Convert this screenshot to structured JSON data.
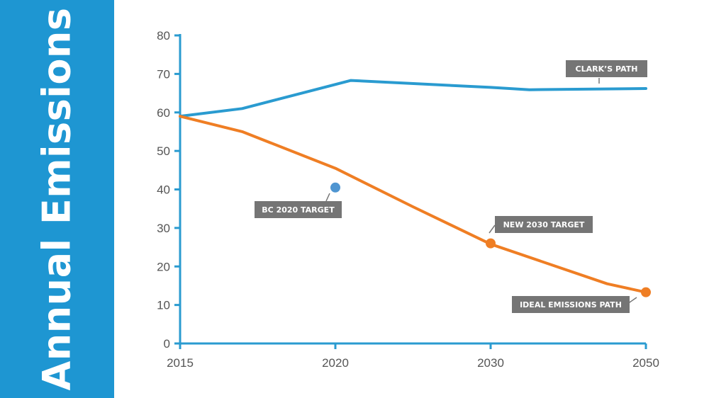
{
  "side_title": "Annual Emissions",
  "colors": {
    "banner": "#1e96d2",
    "clark": "#2a9bd0",
    "ideal": "#ef7e24",
    "bc_target": "#4f95d1",
    "axis": "#2a9bd0",
    "callout_bg": "#757575"
  },
  "chart_data": {
    "type": "line",
    "title": "",
    "xlabel": "",
    "ylabel": "Annual Emissions",
    "x_ticks": [
      "2015",
      "2020",
      "2030",
      "2050"
    ],
    "y_ticks": [
      0,
      10,
      20,
      30,
      40,
      50,
      60,
      70,
      80
    ],
    "ylim": [
      0,
      80
    ],
    "grid": false,
    "series": [
      {
        "name": "CLARK'S PATH",
        "color": "#2a9bd0",
        "points": [
          [
            2015,
            59
          ],
          [
            2017,
            61
          ],
          [
            2021,
            68.3
          ],
          [
            2030,
            66.5
          ],
          [
            2035,
            65.9
          ],
          [
            2050,
            66.2
          ]
        ]
      },
      {
        "name": "IDEAL EMISSIONS PATH",
        "color": "#ef7e24",
        "points": [
          [
            2015,
            59
          ],
          [
            2017,
            55
          ],
          [
            2020,
            45.5
          ],
          [
            2025,
            35.5
          ],
          [
            2030,
            25.8
          ],
          [
            2045,
            15.5
          ],
          [
            2050,
            13.3
          ]
        ]
      }
    ],
    "markers": [
      {
        "label": "BC 2020 TARGET",
        "x": 2020,
        "y": 40.5,
        "color": "#4f95d1"
      },
      {
        "label": "NEW 2030 TARGET",
        "x": 2030,
        "y": 26,
        "color": "#ef7e24"
      },
      {
        "label": "IDEAL EMISSIONS PATH",
        "x": 2050,
        "y": 13.3,
        "color": "#ef7e24"
      }
    ],
    "callouts": {
      "clark": "CLARK’S PATH",
      "bc2020": "BC 2020 TARGET",
      "new2030": "NEW 2030 TARGET",
      "ideal": "IDEAL EMISSIONS PATH"
    }
  }
}
